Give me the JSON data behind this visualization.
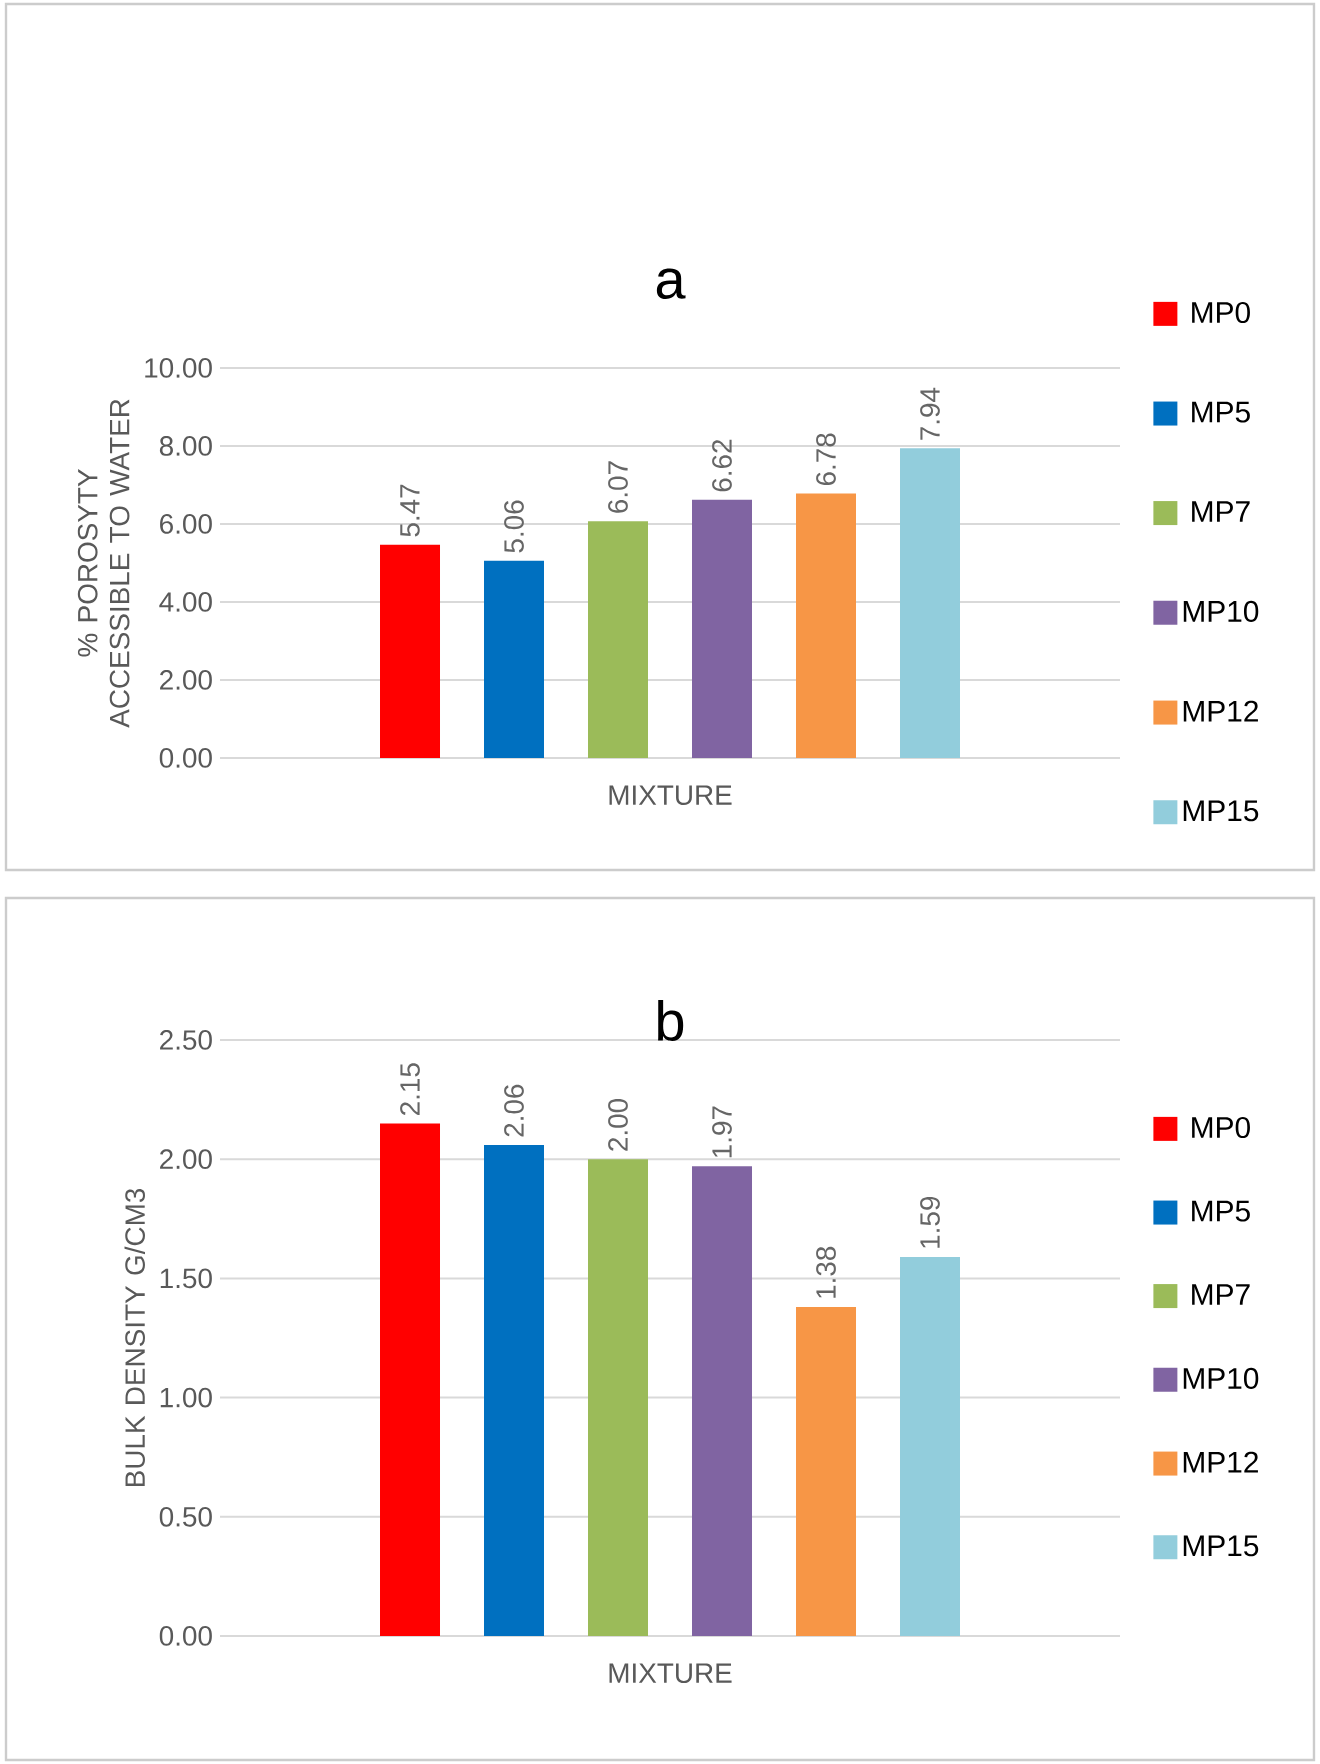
{
  "chart_data": [
    {
      "type": "bar",
      "title": "a",
      "xlabel": "MIXTURE",
      "ylabel": "% POROSYTY ACCESSIBLE TO WATER",
      "categories": [
        null
      ],
      "grid": "y",
      "legend": "right",
      "ylim": [
        0,
        10
      ],
      "yticks": [
        {
          "value": 0,
          "label": "0.00"
        },
        {
          "value": 2,
          "label": "2.00"
        },
        {
          "value": 4,
          "label": "4.00"
        },
        {
          "value": 6,
          "label": "6.00"
        },
        {
          "value": 8,
          "label": "8.00"
        },
        {
          "value": 10,
          "label": "10.00"
        }
      ],
      "series": [
        {
          "name": "MP0",
          "color": "#ff0000",
          "values": [
            5.47
          ],
          "value_labels": [
            "5.47"
          ]
        },
        {
          "name": "MP5",
          "color": "#0070c0",
          "values": [
            5.06
          ],
          "value_labels": [
            "5.06"
          ]
        },
        {
          "name": "MP7",
          "color": "#9bbb59",
          "values": [
            6.07
          ],
          "value_labels": [
            "6.07"
          ]
        },
        {
          "name": "MP10",
          "color": "#8064a2",
          "values": [
            6.62
          ],
          "value_labels": [
            "6.62"
          ]
        },
        {
          "name": "MP12",
          "color": "#f79646",
          "values": [
            6.78
          ],
          "value_labels": [
            "6.78"
          ]
        },
        {
          "name": "MP15",
          "color": "#92cddc",
          "values": [
            7.94
          ],
          "value_labels": [
            "7.94"
          ]
        }
      ]
    },
    {
      "type": "bar",
      "title": "b",
      "xlabel": "MIXTURE",
      "ylabel": "BULK DENSITY G/CM3",
      "categories": [
        null
      ],
      "grid": "y",
      "legend": "right",
      "ylim": [
        0,
        2.5
      ],
      "yticks": [
        {
          "value": 0,
          "label": "0.00"
        },
        {
          "value": 0.5,
          "label": "0.50"
        },
        {
          "value": 1,
          "label": "1.00"
        },
        {
          "value": 1.5,
          "label": "1.50"
        },
        {
          "value": 2,
          "label": "2.00"
        },
        {
          "value": 2.5,
          "label": "2.50"
        }
      ],
      "series": [
        {
          "name": "MP0",
          "color": "#ff0000",
          "values": [
            2.15
          ],
          "value_labels": [
            "2.15"
          ]
        },
        {
          "name": "MP5",
          "color": "#0070c0",
          "values": [
            2.06
          ],
          "value_labels": [
            "2.06"
          ]
        },
        {
          "name": "MP7",
          "color": "#9bbb59",
          "values": [
            2.0
          ],
          "value_labels": [
            "2.00"
          ]
        },
        {
          "name": "MP10",
          "color": "#8064a2",
          "values": [
            1.97
          ],
          "value_labels": [
            "1.97"
          ]
        },
        {
          "name": "MP12",
          "color": "#f79646",
          "values": [
            1.38
          ],
          "value_labels": [
            "1.38"
          ]
        },
        {
          "name": "MP15",
          "color": "#92cddc",
          "values": [
            1.59
          ],
          "value_labels": [
            "1.59"
          ]
        }
      ]
    }
  ]
}
